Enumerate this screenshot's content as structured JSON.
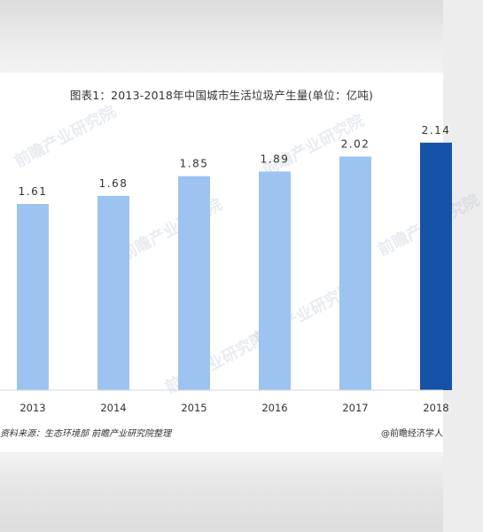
{
  "chart_data": {
    "type": "bar",
    "title": "图表1：2013-2018年中国城市生活垃圾产生量(单位：亿吨)",
    "categories": [
      "2013",
      "2014",
      "2015",
      "2016",
      "2017",
      "2018"
    ],
    "values": [
      1.61,
      1.68,
      1.85,
      1.89,
      2.02,
      2.14
    ],
    "value_labels": [
      "1.61",
      "1.68",
      "1.85",
      "1.89",
      "2.02",
      "2.14"
    ],
    "ylim": [
      0,
      2.3
    ],
    "grid": false,
    "colors": {
      "bar": "#9dc3f0",
      "highlight_bar": "#1653a8",
      "axis": "#cfd8e3"
    },
    "highlight_index": 5
  },
  "footer": {
    "source": "资料来源：生态环境部 前瞻产业研究院整理",
    "brand": "@前瞻经济学人"
  },
  "watermark": {
    "text": "前瞻产业研究院"
  }
}
